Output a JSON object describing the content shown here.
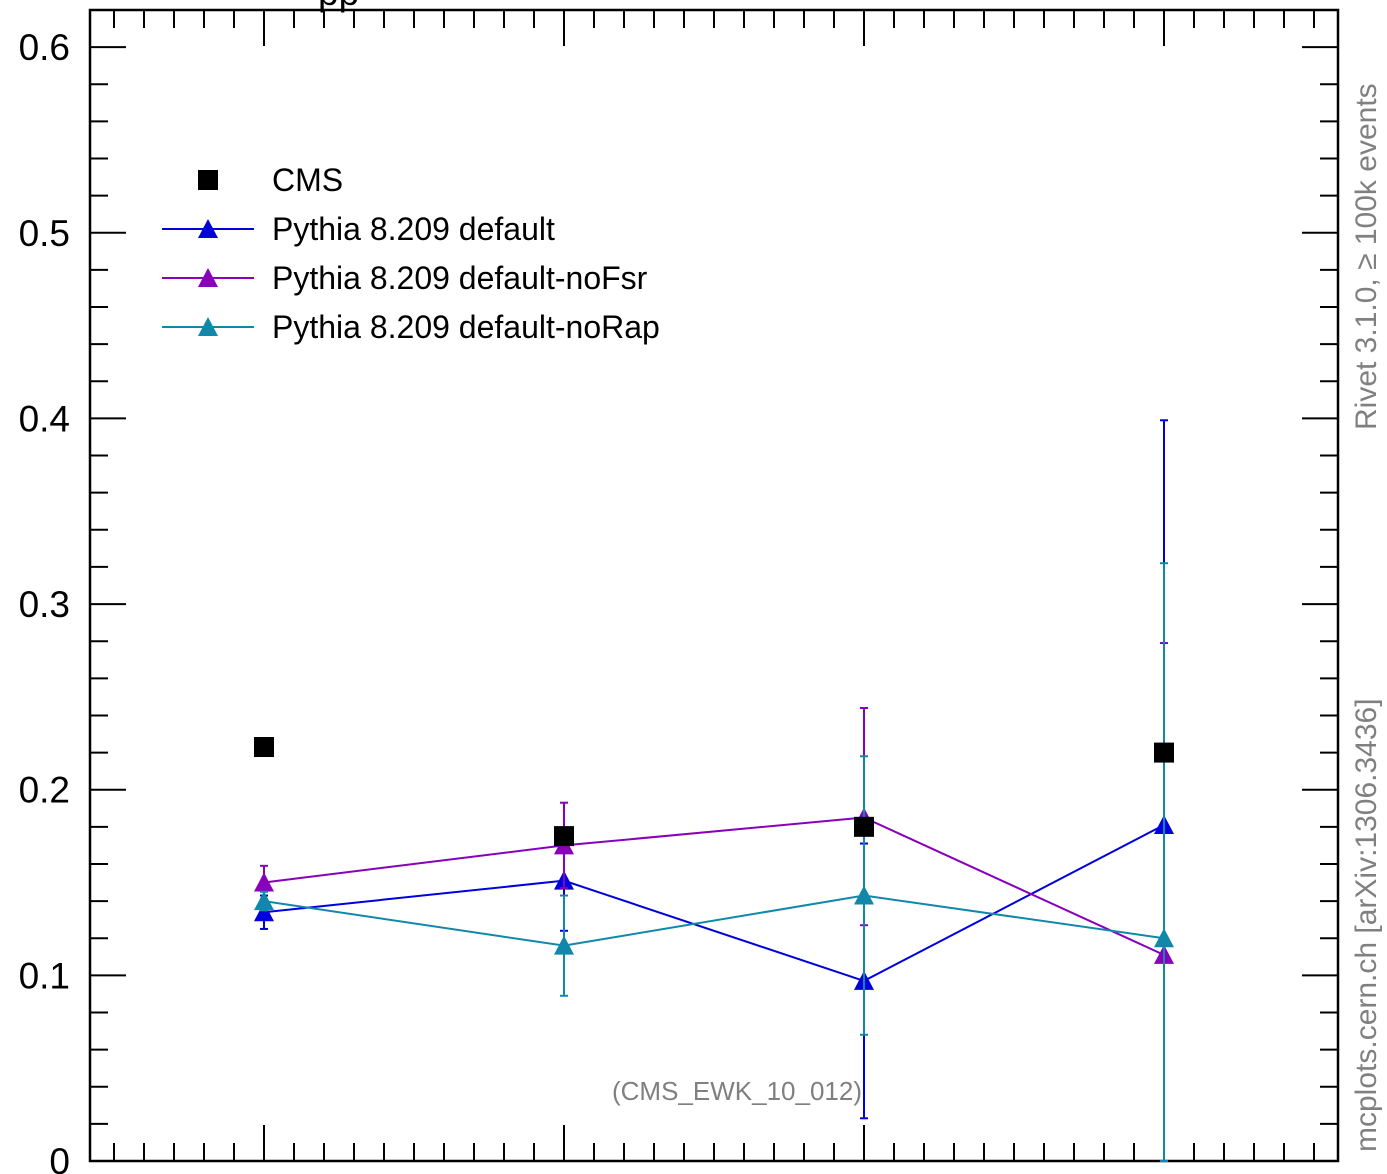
{
  "chart_data": {
    "type": "scatter",
    "title_fragment": "pp",
    "ylim": [
      0,
      0.62
    ],
    "yticks": [
      {
        "value": 0,
        "label": "0"
      },
      {
        "value": 0.1,
        "label": "0.1"
      },
      {
        "value": 0.2,
        "label": "0.2"
      },
      {
        "value": 0.3,
        "label": "0.3"
      },
      {
        "value": 0.4,
        "label": "0.4"
      },
      {
        "value": 0.5,
        "label": "0.5"
      },
      {
        "value": 0.6,
        "label": "0.6"
      }
    ],
    "x": [
      1,
      2,
      3,
      4
    ],
    "xlim": [
      0.42,
      4.58
    ],
    "legend_position": "top-left",
    "grid": false,
    "series": [
      {
        "name": "CMS",
        "marker": "square",
        "line": false,
        "color": "#000000",
        "values": [
          0.223,
          0.175,
          0.18,
          0.22
        ],
        "err": [
          0,
          0,
          0,
          0
        ]
      },
      {
        "name": "Pythia 8.209 default",
        "marker": "triangle",
        "line": true,
        "color": "#0000dd",
        "values": [
          0.134,
          0.151,
          0.097,
          0.181
        ],
        "err_low": [
          0.009,
          0.027,
          0.074,
          0.181
        ],
        "err_high": [
          0.009,
          0.027,
          0.074,
          0.218
        ]
      },
      {
        "name": "Pythia 8.209 default-noFsr",
        "marker": "triangle",
        "line": true,
        "color": "#8800bb",
        "values": [
          0.15,
          0.17,
          0.185,
          0.111
        ],
        "err_low": [
          0.009,
          0.023,
          0.058,
          0.111
        ],
        "err_high": [
          0.009,
          0.023,
          0.059,
          0.168
        ]
      },
      {
        "name": "Pythia 8.209 default-noRap",
        "marker": "triangle",
        "line": true,
        "color": "#1188aa",
        "values": [
          0.14,
          0.116,
          0.143,
          0.12
        ],
        "err_low": [
          0.005,
          0.027,
          0.075,
          0.12
        ],
        "err_high": [
          0.005,
          0.027,
          0.075,
          0.202
        ]
      }
    ],
    "annotation": "(CMS_EWK_10_012)",
    "side_label_top": "Rivet 3.1.0, ≥ 100k events",
    "side_label_bottom": "mcplots.cern.ch [arXiv:1306.3436]"
  }
}
